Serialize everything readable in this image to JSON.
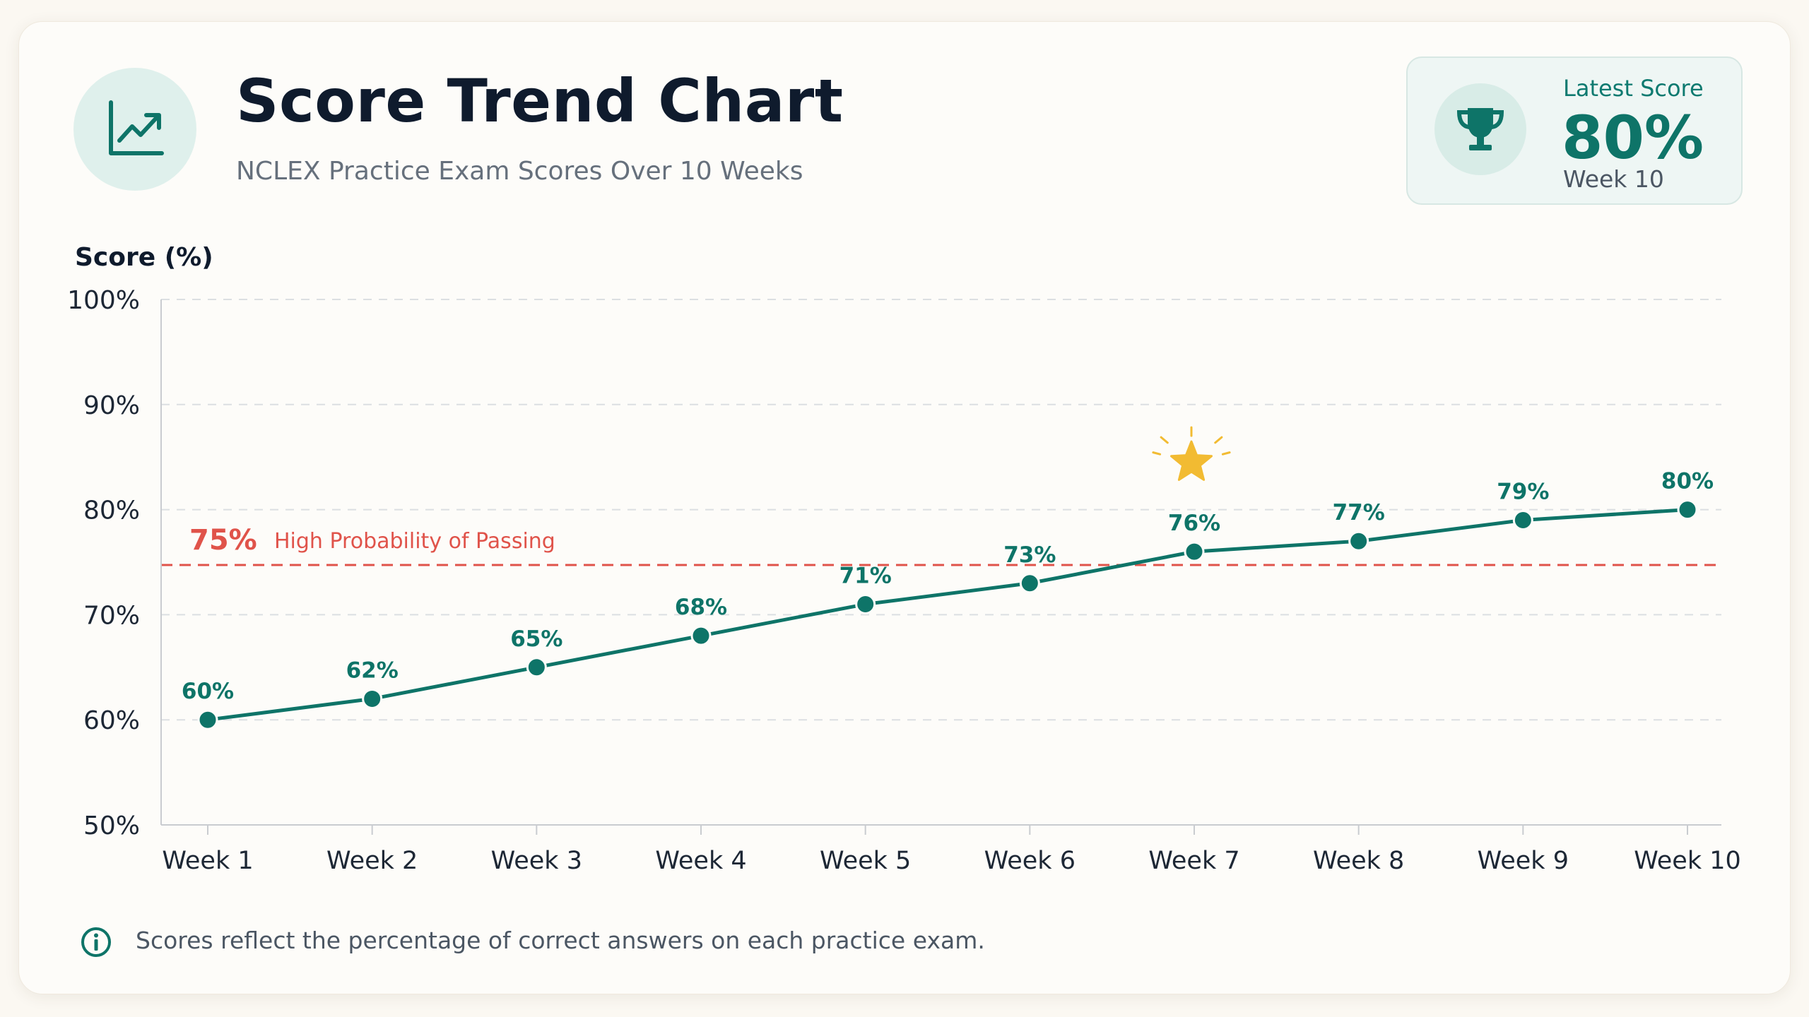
{
  "header": {
    "title": "Score Trend Chart",
    "subtitle": "NCLEX Practice Exam Scores Over 10 Weeks",
    "icon": "trend-up-icon"
  },
  "latest_score": {
    "label": "Latest Score",
    "value": "80%",
    "week": "Week 10",
    "icon": "trophy-icon"
  },
  "chart_data": {
    "type": "line",
    "ylabel": "Score (%)",
    "xlabel": "",
    "categories": [
      "Week 1",
      "Week 2",
      "Week 3",
      "Week 4",
      "Week 5",
      "Week 6",
      "Week 7",
      "Week 8",
      "Week 9",
      "Week 10"
    ],
    "series": [
      {
        "values": [
          60,
          62,
          65,
          68,
          71,
          73,
          76,
          77,
          79,
          80
        ],
        "color": "#0e7468"
      }
    ],
    "data_labels": [
      "60%",
      "62%",
      "65%",
      "68%",
      "71%",
      "73%",
      "76%",
      "77%",
      "79%",
      "80%"
    ],
    "ylim": [
      50,
      100
    ],
    "yticks": [
      50,
      60,
      70,
      80,
      90,
      100
    ],
    "ytick_labels": [
      "50%",
      "60%",
      "70%",
      "80%",
      "90%",
      "100%"
    ],
    "grid": "horizontal dashed",
    "threshold": {
      "value": 75,
      "label_value": "75%",
      "label_text": "High Probability of Passing",
      "color": "#e0534a"
    },
    "highlight": {
      "category": "Week 7",
      "icon": "star-icon",
      "color": "#f2bb32"
    }
  },
  "footer": {
    "note": "Scores reflect the percentage of correct answers on each practice exam.",
    "icon": "info-icon"
  }
}
